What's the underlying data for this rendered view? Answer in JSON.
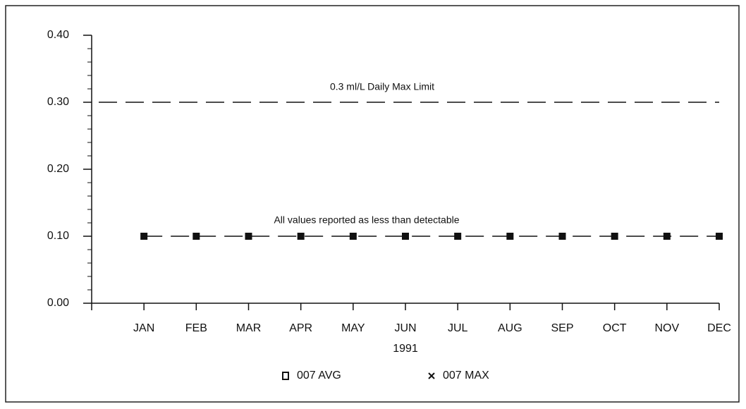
{
  "chart_data": {
    "type": "line",
    "x_label": "1991",
    "categories": [
      "JAN",
      "FEB",
      "MAR",
      "APR",
      "MAY",
      "JUN",
      "JUL",
      "AUG",
      "SEP",
      "OCT",
      "NOV",
      "DEC"
    ],
    "series": [
      {
        "name": "007 AVG",
        "color": "#111111",
        "marker": "square",
        "values": [
          0.1,
          0.1,
          0.1,
          0.1,
          0.1,
          0.1,
          0.1,
          0.1,
          0.1,
          0.1,
          0.1,
          0.1
        ]
      },
      {
        "name": "007 MAX",
        "color": "#111111",
        "marker": "x",
        "values": [
          0.1,
          0.1,
          0.1,
          0.1,
          0.1,
          0.1,
          0.1,
          0.1,
          0.1,
          0.1,
          0.1,
          0.1
        ]
      }
    ],
    "ylim": [
      0,
      0.4
    ],
    "yticks": [
      {
        "value": 0,
        "label": "0.00"
      },
      {
        "value": 0.1,
        "label": "0.10"
      },
      {
        "value": 0.2,
        "label": "0.20"
      },
      {
        "value": 0.3,
        "label": "0.30"
      },
      {
        "value": 0.4,
        "label": "0.40"
      }
    ],
    "yminorticks": [
      0.02,
      0.04,
      0.06,
      0.08,
      0.12,
      0.14,
      0.16,
      0.18,
      0.22,
      0.24,
      0.26,
      0.28,
      0.32,
      0.34,
      0.36,
      0.38
    ],
    "reference_lines": [
      {
        "value": 0.3,
        "label": "0.3 ml/L Daily Max Limit"
      }
    ],
    "annotations": [
      {
        "value": 0.1,
        "text": "All values reported as less than detectable"
      }
    ]
  }
}
